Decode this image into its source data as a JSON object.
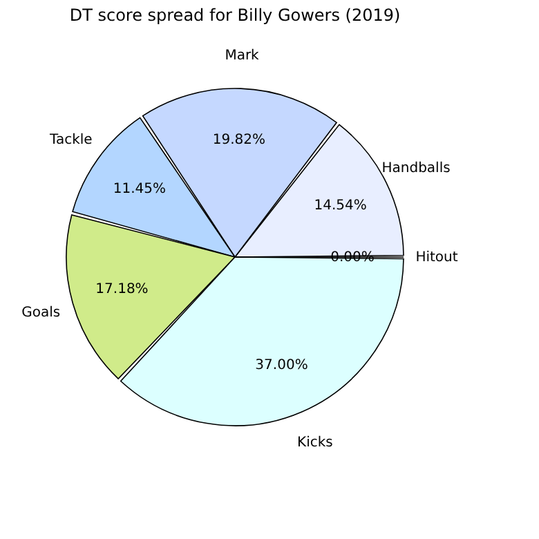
{
  "chart_data": {
    "type": "pie",
    "title": "DT score spread for Billy Gowers (2019)",
    "categories": [
      "Handballs",
      "Mark",
      "Tackle",
      "Goals",
      "Kicks",
      "Hitout"
    ],
    "values": [
      14.54,
      19.82,
      11.45,
      17.18,
      37.0,
      0.0
    ],
    "colors": [
      "#e8eeff",
      "#c5d8ff",
      "#b3d6ff",
      "#d0eb8a",
      "#dcffff",
      "#e8ffe8"
    ],
    "value_labels": [
      "14.54%",
      "19.82%",
      "11.45%",
      "17.18%",
      "37.00%",
      "0.00%"
    ],
    "legend": false
  }
}
